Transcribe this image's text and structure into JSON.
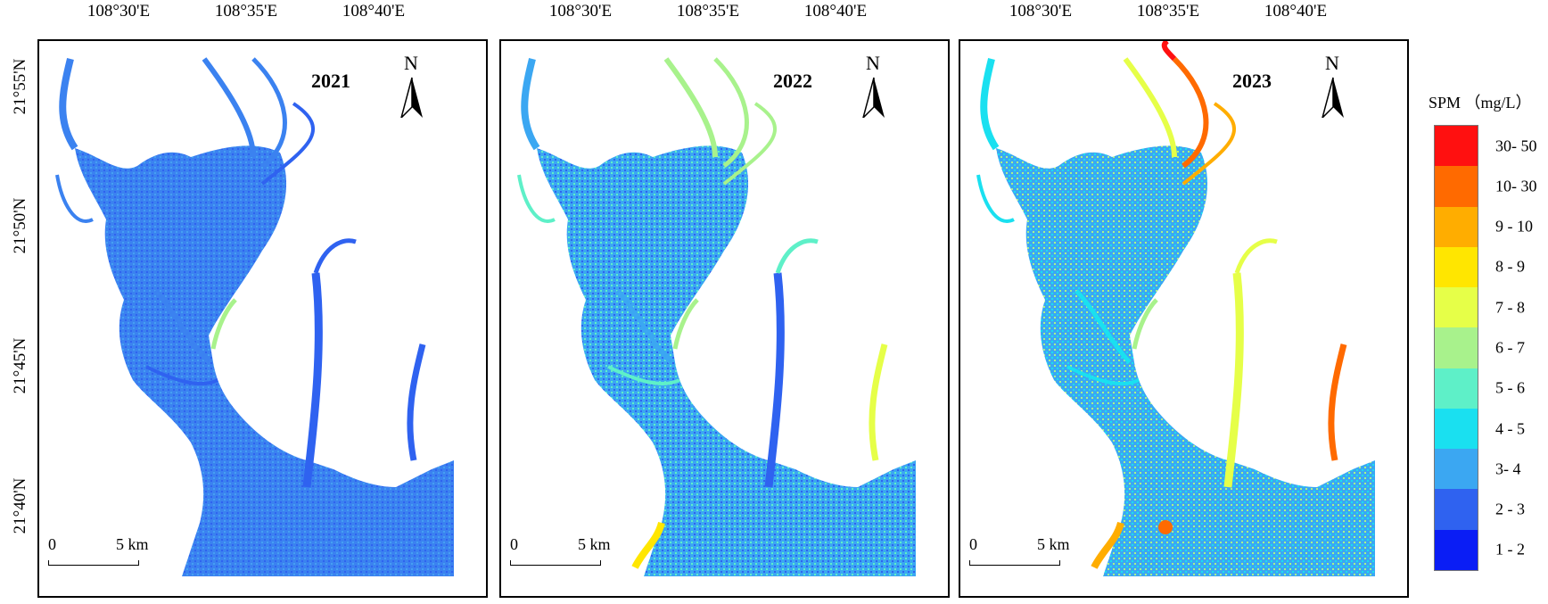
{
  "lon_labels": [
    "108°30'E",
    "108°35'E",
    "108°40'E"
  ],
  "lat_labels": [
    "21°55'N",
    "21°50'N",
    "21°45'N",
    "21°40'N"
  ],
  "panels": [
    {
      "year": "2021",
      "north": "N",
      "scale_start": "0",
      "scale_end": "5 km"
    },
    {
      "year": "2022",
      "north": "N",
      "scale_start": "0",
      "scale_end": "5 km"
    },
    {
      "year": "2023",
      "north": "N",
      "scale_start": "0",
      "scale_end": "5 km"
    }
  ],
  "legend": {
    "title": "SPM （mg/L）",
    "classes": [
      {
        "label": "30- 50",
        "color": "#ff1010"
      },
      {
        "label": "10- 30",
        "color": "#ff6a00"
      },
      {
        "label": "9 - 10",
        "color": "#ffad00"
      },
      {
        "label": "8 - 9",
        "color": "#ffe600"
      },
      {
        "label": "7 - 8",
        "color": "#e6ff48"
      },
      {
        "label": "6 - 7",
        "color": "#a8f28c"
      },
      {
        "label": "5 - 6",
        "color": "#5ef0c8"
      },
      {
        "label": "4 - 5",
        "color": "#1ae0f0"
      },
      {
        "label": "3- 4",
        "color": "#3ba7f2"
      },
      {
        "label": "2 - 3",
        "color": "#2f62f0"
      },
      {
        "label": "1 - 2",
        "color": "#0a1df5"
      }
    ]
  }
}
